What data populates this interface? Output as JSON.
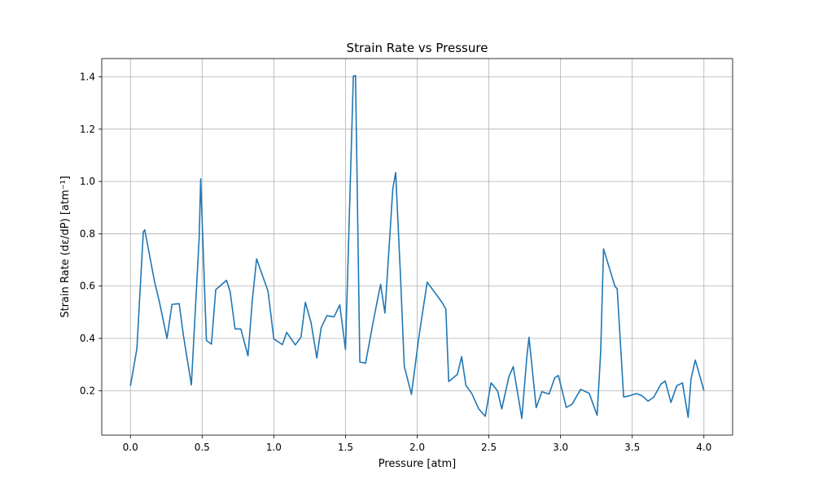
{
  "chart_data": {
    "type": "line",
    "title": "Strain Rate vs Pressure",
    "xlabel": "Pressure [atm]",
    "ylabel": "Strain Rate (dε/dP) [atm⁻¹]",
    "xlim": [
      -0.2,
      4.2
    ],
    "ylim": [
      0.03,
      1.47
    ],
    "xticks": [
      0.0,
      0.5,
      1.0,
      1.5,
      2.0,
      2.5,
      3.0,
      3.5,
      4.0
    ],
    "xtick_labels": [
      "0.0",
      "0.5",
      "1.0",
      "1.5",
      "2.0",
      "2.5",
      "3.0",
      "3.5",
      "4.0"
    ],
    "yticks": [
      0.2,
      0.4,
      0.6,
      0.8,
      1.0,
      1.2,
      1.4
    ],
    "ytick_labels": [
      "0.2",
      "0.4",
      "0.6",
      "0.8",
      "1.0",
      "1.2",
      "1.4"
    ],
    "grid": true,
    "series": [
      {
        "color": "#1f77b4",
        "x": [
          0.0,
          0.045,
          0.09,
          0.1,
          0.17,
          0.2,
          0.255,
          0.29,
          0.34,
          0.37,
          0.425,
          0.48,
          0.49,
          0.53,
          0.565,
          0.595,
          0.67,
          0.695,
          0.73,
          0.77,
          0.82,
          0.85,
          0.88,
          0.96,
          1.0,
          1.06,
          1.09,
          1.15,
          1.19,
          1.22,
          1.26,
          1.3,
          1.33,
          1.37,
          1.42,
          1.46,
          1.5,
          1.555,
          1.57,
          1.6,
          1.64,
          1.7,
          1.745,
          1.775,
          1.83,
          1.85,
          1.885,
          1.91,
          1.96,
          2.01,
          2.035,
          2.07,
          2.17,
          2.2,
          2.22,
          2.28,
          2.31,
          2.34,
          2.38,
          2.43,
          2.475,
          2.515,
          2.56,
          2.59,
          2.64,
          2.67,
          2.73,
          2.765,
          2.78,
          2.83,
          2.87,
          2.92,
          2.96,
          2.985,
          3.04,
          3.08,
          3.14,
          3.2,
          3.255,
          3.28,
          3.3,
          3.38,
          3.395,
          3.44,
          3.47,
          3.53,
          3.57,
          3.61,
          3.65,
          3.7,
          3.73,
          3.77,
          3.81,
          3.85,
          3.89,
          3.91,
          3.94,
          4.0
        ],
        "y": [
          0.218,
          0.36,
          0.807,
          0.815,
          0.612,
          0.545,
          0.4,
          0.53,
          0.533,
          0.41,
          0.222,
          0.79,
          1.01,
          0.392,
          0.378,
          0.586,
          0.622,
          0.58,
          0.436,
          0.436,
          0.333,
          0.545,
          0.704,
          0.58,
          0.398,
          0.376,
          0.423,
          0.375,
          0.405,
          0.538,
          0.46,
          0.325,
          0.44,
          0.487,
          0.482,
          0.528,
          0.358,
          1.403,
          1.405,
          0.31,
          0.305,
          0.483,
          0.607,
          0.497,
          0.972,
          1.034,
          0.622,
          0.293,
          0.186,
          0.398,
          0.49,
          0.615,
          0.54,
          0.512,
          0.235,
          0.262,
          0.33,
          0.22,
          0.19,
          0.13,
          0.102,
          0.23,
          0.2,
          0.13,
          0.254,
          0.292,
          0.094,
          0.33,
          0.404,
          0.135,
          0.196,
          0.187,
          0.25,
          0.258,
          0.136,
          0.148,
          0.205,
          0.19,
          0.106,
          0.35,
          0.742,
          0.598,
          0.59,
          0.176,
          0.179,
          0.189,
          0.18,
          0.16,
          0.175,
          0.225,
          0.237,
          0.155,
          0.218,
          0.23,
          0.098,
          0.245,
          0.317,
          0.2
        ]
      }
    ]
  }
}
